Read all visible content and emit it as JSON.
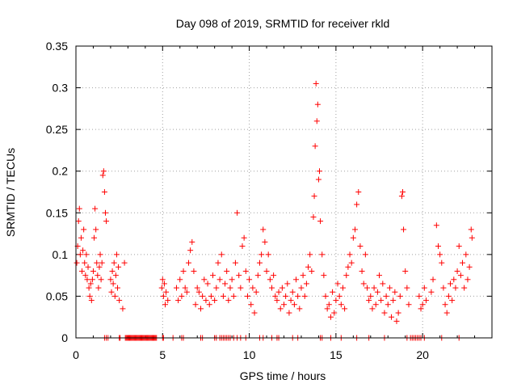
{
  "chart_data": {
    "type": "scatter",
    "title": "Day 098 of 2019, SRMTID for receiver rkld",
    "xlabel": "GPS time / hours",
    "ylabel": "SRMTID / TECUs",
    "xlim": [
      0,
      24
    ],
    "ylim": [
      0,
      0.35
    ],
    "xticks": [
      0,
      5,
      10,
      15,
      20
    ],
    "xtick_labels": [
      "0",
      "5",
      "10",
      "15",
      "20"
    ],
    "yticks": [
      0,
      0.05,
      0.1,
      0.15,
      0.2,
      0.25,
      0.3,
      0.35
    ],
    "ytick_labels": [
      "0",
      "0.05",
      "0.1",
      "0.15",
      "0.2",
      "0.25",
      "0.3",
      "0.35"
    ],
    "grid": true,
    "marker": "plus",
    "color": "#ff0000",
    "series": [
      {
        "name": "SRMTID",
        "points": [
          [
            0.05,
            0.09
          ],
          [
            0.1,
            0.11
          ],
          [
            0.15,
            0.14
          ],
          [
            0.2,
            0.155
          ],
          [
            0.25,
            0.1
          ],
          [
            0.3,
            0.12
          ],
          [
            0.35,
            0.08
          ],
          [
            0.4,
            0.105
          ],
          [
            0.45,
            0.13
          ],
          [
            0.5,
            0.09
          ],
          [
            0.55,
            0.075
          ],
          [
            0.6,
            0.1
          ],
          [
            0.65,
            0.07
          ],
          [
            0.7,
            0.085
          ],
          [
            0.75,
            0.06
          ],
          [
            0.8,
            0.05
          ],
          [
            0.85,
            0.065
          ],
          [
            0.9,
            0.045
          ],
          [
            0.95,
            0.07
          ],
          [
            1.0,
            0.08
          ],
          [
            1.05,
            0.12
          ],
          [
            1.1,
            0.155
          ],
          [
            1.15,
            0.13
          ],
          [
            1.2,
            0.09
          ],
          [
            1.25,
            0.075
          ],
          [
            1.3,
            0.06
          ],
          [
            1.35,
            0.085
          ],
          [
            1.4,
            0.1
          ],
          [
            1.45,
            0.07
          ],
          [
            1.5,
            0.09
          ],
          [
            1.55,
            0.195
          ],
          [
            1.6,
            0.2
          ],
          [
            1.65,
            0.175
          ],
          [
            1.7,
            0.15
          ],
          [
            1.75,
            0.14
          ],
          [
            2.0,
            0.07
          ],
          [
            2.05,
            0.055
          ],
          [
            2.1,
            0.08
          ],
          [
            2.15,
            0.065
          ],
          [
            2.2,
            0.09
          ],
          [
            2.25,
            0.05
          ],
          [
            2.3,
            0.075
          ],
          [
            2.35,
            0.1
          ],
          [
            2.4,
            0.06
          ],
          [
            2.45,
            0.085
          ],
          [
            2.5,
            0.045
          ],
          [
            2.7,
            0.035
          ],
          [
            2.8,
            0.09
          ],
          [
            4.95,
            0.06
          ],
          [
            5.0,
            0.07
          ],
          [
            5.05,
            0.05
          ],
          [
            5.1,
            0.065
          ],
          [
            5.15,
            0.04
          ],
          [
            5.2,
            0.055
          ],
          [
            5.3,
            0.045
          ],
          [
            5.8,
            0.06
          ],
          [
            5.9,
            0.045
          ],
          [
            6.0,
            0.07
          ],
          [
            6.1,
            0.05
          ],
          [
            6.2,
            0.08
          ],
          [
            6.3,
            0.06
          ],
          [
            6.4,
            0.055
          ],
          [
            6.5,
            0.09
          ],
          [
            6.6,
            0.105
          ],
          [
            6.7,
            0.115
          ],
          [
            6.8,
            0.08
          ],
          [
            6.9,
            0.04
          ],
          [
            7.0,
            0.06
          ],
          [
            7.1,
            0.055
          ],
          [
            7.2,
            0.035
          ],
          [
            7.3,
            0.05
          ],
          [
            7.4,
            0.07
          ],
          [
            7.5,
            0.045
          ],
          [
            7.6,
            0.065
          ],
          [
            7.7,
            0.04
          ],
          [
            7.8,
            0.05
          ],
          [
            7.9,
            0.075
          ],
          [
            8.0,
            0.045
          ],
          [
            8.1,
            0.06
          ],
          [
            8.2,
            0.09
          ],
          [
            8.3,
            0.07
          ],
          [
            8.4,
            0.1
          ],
          [
            8.5,
            0.05
          ],
          [
            8.6,
            0.065
          ],
          [
            8.7,
            0.08
          ],
          [
            8.8,
            0.045
          ],
          [
            8.9,
            0.06
          ],
          [
            9.0,
            0.07
          ],
          [
            9.1,
            0.05
          ],
          [
            9.2,
            0.09
          ],
          [
            9.3,
            0.15
          ],
          [
            9.4,
            0.075
          ],
          [
            9.5,
            0.06
          ],
          [
            9.6,
            0.11
          ],
          [
            9.7,
            0.12
          ],
          [
            9.8,
            0.08
          ],
          [
            9.9,
            0.05
          ],
          [
            10.0,
            0.07
          ],
          [
            10.1,
            0.04
          ],
          [
            10.2,
            0.06
          ],
          [
            10.3,
            0.03
          ],
          [
            10.4,
            0.055
          ],
          [
            10.5,
            0.075
          ],
          [
            10.6,
            0.09
          ],
          [
            10.7,
            0.1
          ],
          [
            10.8,
            0.13
          ],
          [
            10.9,
            0.115
          ],
          [
            11.0,
            0.08
          ],
          [
            11.1,
            0.1
          ],
          [
            11.2,
            0.07
          ],
          [
            11.3,
            0.06
          ],
          [
            11.4,
            0.075
          ],
          [
            11.5,
            0.05
          ],
          [
            11.6,
            0.045
          ],
          [
            11.7,
            0.055
          ],
          [
            11.8,
            0.035
          ],
          [
            11.9,
            0.06
          ],
          [
            12.0,
            0.04
          ],
          [
            12.1,
            0.05
          ],
          [
            12.2,
            0.065
          ],
          [
            12.3,
            0.03
          ],
          [
            12.4,
            0.045
          ],
          [
            12.5,
            0.055
          ],
          [
            12.6,
            0.04
          ],
          [
            12.7,
            0.07
          ],
          [
            12.8,
            0.05
          ],
          [
            12.9,
            0.035
          ],
          [
            13.0,
            0.06
          ],
          [
            13.1,
            0.075
          ],
          [
            13.2,
            0.05
          ],
          [
            13.3,
            0.065
          ],
          [
            13.4,
            0.085
          ],
          [
            13.5,
            0.1
          ],
          [
            13.6,
            0.08
          ],
          [
            13.7,
            0.145
          ],
          [
            13.75,
            0.17
          ],
          [
            13.8,
            0.23
          ],
          [
            13.85,
            0.305
          ],
          [
            13.9,
            0.26
          ],
          [
            13.95,
            0.28
          ],
          [
            14.0,
            0.19
          ],
          [
            14.05,
            0.2
          ],
          [
            14.1,
            0.14
          ],
          [
            14.2,
            0.1
          ],
          [
            14.3,
            0.075
          ],
          [
            14.4,
            0.05
          ],
          [
            14.5,
            0.035
          ],
          [
            14.6,
            0.04
          ],
          [
            14.7,
            0.025
          ],
          [
            14.8,
            0.055
          ],
          [
            14.9,
            0.03
          ],
          [
            15.0,
            0.045
          ],
          [
            15.1,
            0.065
          ],
          [
            15.2,
            0.05
          ],
          [
            15.3,
            0.04
          ],
          [
            15.4,
            0.06
          ],
          [
            15.5,
            0.035
          ],
          [
            15.6,
            0.075
          ],
          [
            15.7,
            0.085
          ],
          [
            15.8,
            0.1
          ],
          [
            15.9,
            0.09
          ],
          [
            16.0,
            0.12
          ],
          [
            16.1,
            0.13
          ],
          [
            16.2,
            0.16
          ],
          [
            16.3,
            0.175
          ],
          [
            16.4,
            0.11
          ],
          [
            16.5,
            0.08
          ],
          [
            16.6,
            0.065
          ],
          [
            16.7,
            0.1
          ],
          [
            16.8,
            0.06
          ],
          [
            16.9,
            0.045
          ],
          [
            17.0,
            0.05
          ],
          [
            17.1,
            0.035
          ],
          [
            17.2,
            0.06
          ],
          [
            17.3,
            0.04
          ],
          [
            17.4,
            0.055
          ],
          [
            17.5,
            0.075
          ],
          [
            17.6,
            0.045
          ],
          [
            17.7,
            0.065
          ],
          [
            17.8,
            0.03
          ],
          [
            17.9,
            0.05
          ],
          [
            18.0,
            0.04
          ],
          [
            18.1,
            0.06
          ],
          [
            18.2,
            0.025
          ],
          [
            18.3,
            0.045
          ],
          [
            18.4,
            0.055
          ],
          [
            18.5,
            0.02
          ],
          [
            18.6,
            0.03
          ],
          [
            18.7,
            0.05
          ],
          [
            18.8,
            0.17
          ],
          [
            18.85,
            0.175
          ],
          [
            18.9,
            0.13
          ],
          [
            19.0,
            0.08
          ],
          [
            19.1,
            0.06
          ],
          [
            19.2,
            0.04
          ],
          [
            19.8,
            0.05
          ],
          [
            19.9,
            0.035
          ],
          [
            20.0,
            0.04
          ],
          [
            20.1,
            0.06
          ],
          [
            20.2,
            0.045
          ],
          [
            20.5,
            0.055
          ],
          [
            20.6,
            0.07
          ],
          [
            20.8,
            0.135
          ],
          [
            20.9,
            0.11
          ],
          [
            21.0,
            0.1
          ],
          [
            21.1,
            0.09
          ],
          [
            21.2,
            0.06
          ],
          [
            21.3,
            0.04
          ],
          [
            21.4,
            0.03
          ],
          [
            21.5,
            0.05
          ],
          [
            21.6,
            0.065
          ],
          [
            21.7,
            0.045
          ],
          [
            21.8,
            0.07
          ],
          [
            21.9,
            0.06
          ],
          [
            22.0,
            0.08
          ],
          [
            22.1,
            0.11
          ],
          [
            22.2,
            0.075
          ],
          [
            22.3,
            0.09
          ],
          [
            22.4,
            0.06
          ],
          [
            22.5,
            0.1
          ],
          [
            22.6,
            0.07
          ],
          [
            22.7,
            0.085
          ],
          [
            22.8,
            0.13
          ],
          [
            22.85,
            0.12
          ]
        ],
        "zeros": [
          1.65,
          1.75,
          1.85,
          2.5,
          2.55,
          2.85,
          2.9,
          2.95,
          3.0,
          3.05,
          3.1,
          3.15,
          3.2,
          3.25,
          3.3,
          3.35,
          3.4,
          3.45,
          3.5,
          3.55,
          3.6,
          3.65,
          3.7,
          3.75,
          3.8,
          3.85,
          3.9,
          3.95,
          4.0,
          4.05,
          4.1,
          4.15,
          4.2,
          4.25,
          4.3,
          4.35,
          4.4,
          4.45,
          4.5,
          4.55,
          4.6,
          4.65,
          5.0,
          5.05,
          5.6,
          6.1,
          6.2,
          7.2,
          7.3,
          8.0,
          8.1,
          8.3,
          8.4,
          8.5,
          8.6,
          8.7,
          8.8,
          8.9,
          9.1,
          9.3,
          9.5,
          9.8,
          10.6,
          10.8,
          11.3,
          11.6,
          11.7,
          12.5,
          12.8,
          14.1,
          14.2,
          14.7,
          15.3,
          16.2,
          16.9,
          17.8,
          19.1,
          19.3,
          19.4,
          19.5,
          19.6,
          19.7,
          19.8,
          19.9,
          20.1,
          21.1,
          22.1
        ]
      }
    ]
  }
}
